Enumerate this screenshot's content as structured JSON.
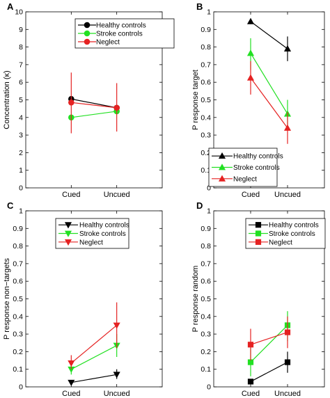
{
  "chart_data": [
    {
      "panel": "A",
      "type": "line",
      "categories": [
        "Cued",
        "Uncued"
      ],
      "ylabel": "Concentration (κ)",
      "ylim": [
        0,
        10
      ],
      "yticks": [
        "0",
        "1",
        "2",
        "3",
        "4",
        "5",
        "6",
        "7",
        "8",
        "9",
        "10"
      ],
      "legend_position": "top-right",
      "markers": "circle",
      "series": [
        {
          "name": "Healthy controls",
          "color": "#000000",
          "values": [
            5.05,
            4.55
          ],
          "err_low": [
            null,
            null
          ],
          "err_high": [
            null,
            null
          ]
        },
        {
          "name": "Stroke controls",
          "color": "#22e022",
          "values": [
            4.0,
            4.35
          ],
          "err_low": [
            null,
            null
          ],
          "err_high": [
            null,
            null
          ]
        },
        {
          "name": "Neglect",
          "color": "#e52222",
          "values": [
            4.85,
            4.55
          ],
          "err_low": [
            3.1,
            3.2
          ],
          "err_high": [
            6.55,
            5.95
          ]
        }
      ]
    },
    {
      "panel": "B",
      "type": "line",
      "categories": [
        "Cued",
        "Uncued"
      ],
      "ylabel": "P response target",
      "ylim": [
        0,
        1
      ],
      "yticks": [
        "0",
        "0.1",
        "0.2",
        "0.3",
        "0.4",
        "0.5",
        "0.6",
        "0.7",
        "0.8",
        "0.9",
        "1"
      ],
      "legend_position": "bottom-left",
      "markers": "triangle-up",
      "series": [
        {
          "name": "Healthy controls",
          "color": "#000000",
          "values": [
            0.945,
            0.79
          ],
          "err_low": [
            0.93,
            0.72
          ],
          "err_high": [
            0.96,
            0.86
          ]
        },
        {
          "name": "Stroke controls",
          "color": "#22e022",
          "values": [
            0.765,
            0.42
          ],
          "err_low": [
            0.67,
            0.34
          ],
          "err_high": [
            0.85,
            0.5
          ]
        },
        {
          "name": "Neglect",
          "color": "#e52222",
          "values": [
            0.625,
            0.34
          ],
          "err_low": [
            0.53,
            0.25
          ],
          "err_high": [
            0.72,
            0.43
          ]
        }
      ]
    },
    {
      "panel": "C",
      "type": "line",
      "categories": [
        "Cued",
        "Uncued"
      ],
      "ylabel": "P response non−targets",
      "ylim": [
        0,
        1
      ],
      "yticks": [
        "0",
        "0.1",
        "0.2",
        "0.3",
        "0.4",
        "0.5",
        "0.6",
        "0.7",
        "0.8",
        "0.9",
        "1"
      ],
      "legend_position": "top-right",
      "markers": "triangle-down",
      "series": [
        {
          "name": "Healthy controls",
          "color": "#000000",
          "values": [
            0.025,
            0.07
          ],
          "err_low": [
            0.015,
            0.045
          ],
          "err_high": [
            0.035,
            0.1
          ]
        },
        {
          "name": "Stroke controls",
          "color": "#22e022",
          "values": [
            0.1,
            0.235
          ],
          "err_low": [
            0.07,
            0.17
          ],
          "err_high": [
            0.13,
            0.3
          ]
        },
        {
          "name": "Neglect",
          "color": "#e52222",
          "values": [
            0.135,
            0.35
          ],
          "err_low": [
            0.1,
            0.22
          ],
          "err_high": [
            0.18,
            0.48
          ]
        }
      ]
    },
    {
      "panel": "D",
      "type": "line",
      "categories": [
        "Cued",
        "Uncued"
      ],
      "ylabel": "P response random",
      "ylim": [
        0,
        1
      ],
      "yticks": [
        "0",
        "0.1",
        "0.2",
        "0.3",
        "0.4",
        "0.5",
        "0.6",
        "0.7",
        "0.8",
        "0.9",
        "1"
      ],
      "legend_position": "top-right",
      "markers": "square",
      "series": [
        {
          "name": "Healthy controls",
          "color": "#000000",
          "values": [
            0.03,
            0.14
          ],
          "err_low": [
            0.02,
            0.08
          ],
          "err_high": [
            0.04,
            0.2
          ]
        },
        {
          "name": "Stroke controls",
          "color": "#22e022",
          "values": [
            0.14,
            0.35
          ],
          "err_low": [
            0.06,
            0.26
          ],
          "err_high": [
            0.22,
            0.43
          ]
        },
        {
          "name": "Neglect",
          "color": "#e52222",
          "values": [
            0.24,
            0.31
          ],
          "err_low": [
            0.15,
            0.22
          ],
          "err_high": [
            0.33,
            0.4
          ]
        }
      ]
    }
  ]
}
